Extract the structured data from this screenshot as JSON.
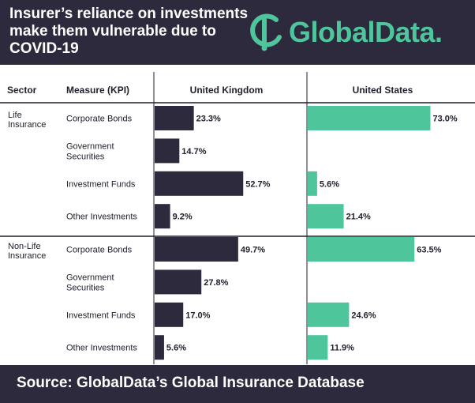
{
  "title": "Insurer’s reliance on investments\nmake them vulnerable due to\nCOVID-19",
  "brand": {
    "name": "GlobalData.",
    "color": "#4fc59c"
  },
  "colors": {
    "header_bg": "#2d2a3d",
    "uk_bar": "#2d2a3d",
    "us_bar": "#4fc59c",
    "divider": "#1f1d2b"
  },
  "table_headers": {
    "sector": "Sector",
    "measure": "Measure (KPI)",
    "uk": "United Kingdom",
    "us": "United States"
  },
  "source": "Source:  GlobalData’s Global Insurance Database",
  "chart_data": {
    "type": "bar",
    "orientation": "horizontal",
    "value_suffix": "%",
    "groups": [
      {
        "sector": "Life\nInsurance",
        "rows": [
          {
            "measure": "Corporate Bonds",
            "uk": 23.3,
            "us": 73.0,
            "uk_label": "23.3%",
            "us_label": "73.0%"
          },
          {
            "measure": "Government\nSecurities",
            "uk": 14.7,
            "us": null,
            "uk_label": "14.7%",
            "us_label": ""
          },
          {
            "measure": "Investment Funds",
            "uk": 52.7,
            "us": 5.6,
            "uk_label": "52.7%",
            "us_label": "5.6%"
          },
          {
            "measure": "Other Investments",
            "uk": 9.2,
            "us": 21.4,
            "uk_label": "9.2%",
            "us_label": "21.4%"
          }
        ]
      },
      {
        "sector": "Non-Life\nInsurance",
        "rows": [
          {
            "measure": "Corporate Bonds",
            "uk": 49.7,
            "us": 63.5,
            "uk_label": "49.7%",
            "us_label": "63.5%"
          },
          {
            "measure": "Government\nSecurities",
            "uk": 27.8,
            "us": null,
            "uk_label": "27.8%",
            "us_label": ""
          },
          {
            "measure": "Investment Funds",
            "uk": 17.0,
            "us": 24.6,
            "uk_label": "17.0%",
            "us_label": "24.6%"
          },
          {
            "measure": "Other Investments",
            "uk": 5.6,
            "us": 11.9,
            "uk_label": "5.6%",
            "us_label": "11.9%"
          }
        ]
      }
    ]
  }
}
